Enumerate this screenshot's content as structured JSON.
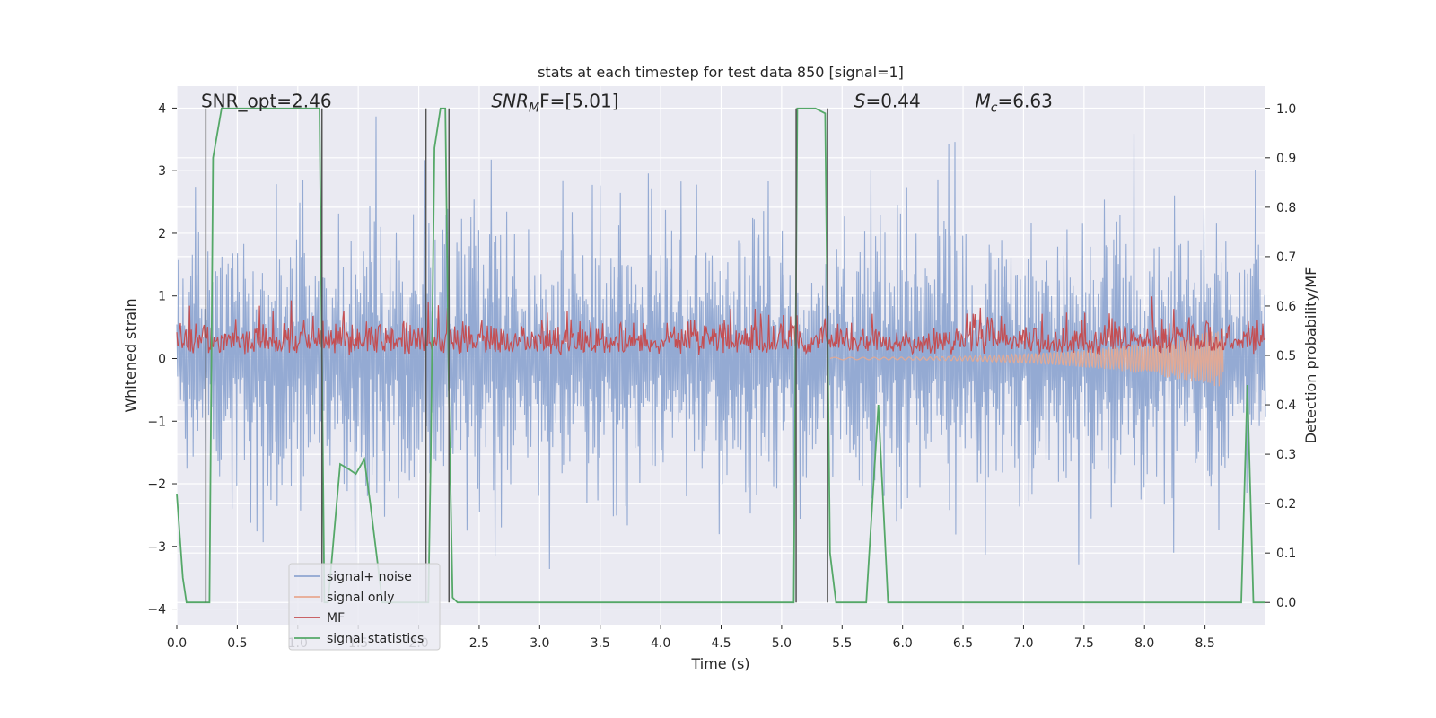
{
  "chart_data": {
    "type": "line",
    "title": "stats at each timestep for test data 850 [signal=1]",
    "xlabel": "Time (s)",
    "ylabel_left": "Whitened strain",
    "ylabel_right": "Detection probability/MF",
    "xlim": [
      0.0,
      9.0
    ],
    "ylim_left": [
      -4.25,
      4.35
    ],
    "ylim_right": [
      -0.045,
      1.045
    ],
    "xticks": [
      0.0,
      0.5,
      1.0,
      1.5,
      2.0,
      2.5,
      3.0,
      3.5,
      4.0,
      4.5,
      5.0,
      5.5,
      6.0,
      6.5,
      7.0,
      7.5,
      8.0,
      8.5
    ],
    "xtick_labels": [
      "0.0",
      "0.5",
      "1.0",
      "1.5",
      "2.0",
      "2.5",
      "3.0",
      "3.5",
      "4.0",
      "4.5",
      "5.0",
      "5.5",
      "6.0",
      "6.5",
      "7.0",
      "7.5",
      "8.0",
      "8.5"
    ],
    "yticks_left": [
      4,
      3,
      2,
      1,
      0,
      -1,
      -2,
      -3,
      -4
    ],
    "ytick_labels_left": [
      "4",
      "3",
      "2",
      "1",
      "0",
      "−1",
      "−2",
      "−3",
      "−4"
    ],
    "yticks_right": [
      1.0,
      0.9,
      0.8,
      0.7,
      0.6,
      0.5,
      0.4,
      0.3,
      0.2,
      0.1,
      0.0
    ],
    "ytick_labels_right": [
      "1.0",
      "0.9",
      "0.8",
      "0.7",
      "0.6",
      "0.5",
      "0.4",
      "0.3",
      "0.2",
      "0.1",
      "0.0"
    ],
    "grid": true,
    "legend_position": "lower-left",
    "annotations": [
      {
        "text": "SNR_opt=2.46",
        "x": 0.2,
        "y": 4.0
      },
      {
        "text": "SNR",
        "sub": "M",
        "tail": "F=[5.01]",
        "italic": true,
        "x": 2.6,
        "y": 4.0
      },
      {
        "text": "S",
        "tail": "=0.44",
        "italic": true,
        "x": 5.6,
        "y": 4.0
      },
      {
        "text": "M",
        "sub": "c",
        "tail": "=6.63",
        "italic": true,
        "x": 6.6,
        "y": 4.0
      }
    ],
    "vertical_lines_x": [
      0.24,
      1.2,
      2.06,
      2.25,
      5.12,
      5.38
    ],
    "series": [
      {
        "name": "signal+ noise",
        "color": "#8fa6d1",
        "kind": "noise_band",
        "amplitude_typical": 2.0,
        "amplitude_max": 4.0,
        "axis": "left"
      },
      {
        "name": "signal only",
        "color": "#e8a88f",
        "kind": "chirp",
        "start": 5.4,
        "end": 8.65,
        "amplitude_end": 0.45,
        "axis": "left"
      },
      {
        "name": "MF",
        "color": "#c44e52",
        "kind": "noise_positive",
        "amplitude_typical": 0.55,
        "amplitude_max": 1.0,
        "axis": "left"
      },
      {
        "name": "signal statistics",
        "color": "#55a868",
        "axis": "right",
        "x": [
          0.0,
          0.05,
          0.08,
          0.25,
          0.27,
          0.3,
          0.37,
          0.45,
          1.0,
          1.18,
          1.22,
          1.25,
          1.35,
          1.42,
          1.48,
          1.55,
          1.6,
          1.7,
          1.8,
          2.05,
          2.08,
          2.1,
          2.13,
          2.18,
          2.22,
          2.25,
          2.28,
          2.32,
          2.4,
          5.1,
          5.13,
          5.18,
          5.28,
          5.36,
          5.4,
          5.45,
          5.5,
          5.7,
          5.8,
          5.88,
          5.95,
          8.7,
          8.8,
          8.85,
          8.9,
          9.0
        ],
        "y": [
          0.22,
          0.05,
          0.0,
          0.0,
          0.0,
          0.9,
          1.0,
          1.0,
          1.0,
          1.0,
          0.0,
          0.0,
          0.28,
          0.27,
          0.26,
          0.29,
          0.2,
          0.0,
          0.0,
          0.0,
          0.0,
          0.3,
          0.92,
          1.0,
          1.0,
          0.4,
          0.01,
          0.0,
          0.0,
          0.0,
          1.0,
          1.0,
          1.0,
          0.99,
          0.1,
          0.0,
          0.0,
          0.0,
          0.4,
          0.0,
          0.0,
          0.0,
          0.0,
          0.44,
          0.0,
          0.0
        ]
      }
    ]
  }
}
